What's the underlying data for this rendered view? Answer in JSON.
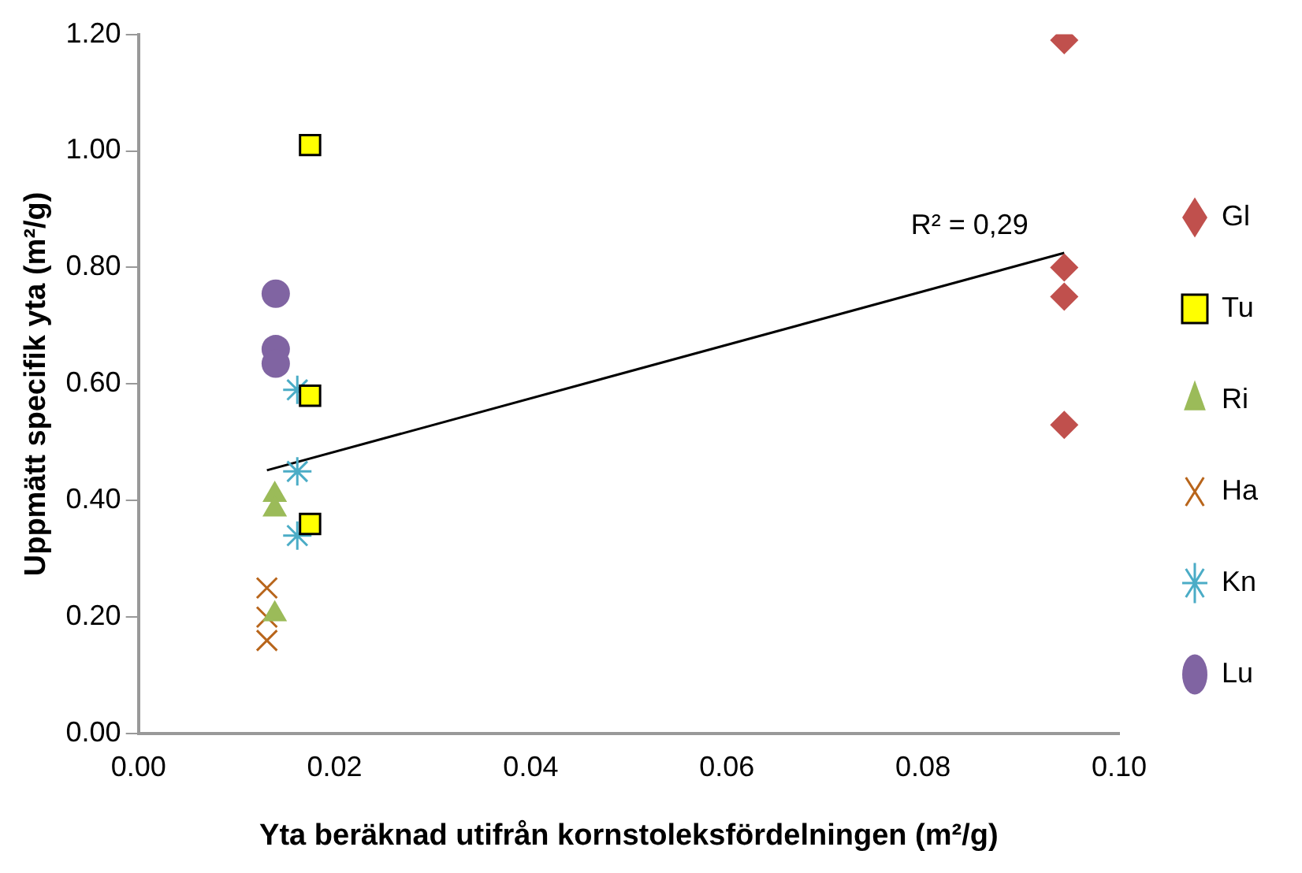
{
  "chart_data": {
    "type": "scatter",
    "xlabel": "Yta beräknad utifrån kornstoleksfördelningen (m²/g)",
    "ylabel": "Uppmätt specifik yta (m²/g)",
    "xlim": [
      0,
      0.1
    ],
    "xticks": [
      {
        "value": 0,
        "label": "0.00"
      },
      {
        "value": 0.02,
        "label": "0.02"
      },
      {
        "value": 0.04,
        "label": "0.04"
      },
      {
        "value": 0.06,
        "label": "0.06"
      },
      {
        "value": 0.08,
        "label": "0.08"
      },
      {
        "value": 0.1,
        "label": "0.10"
      }
    ],
    "ylim": [
      0,
      1.2
    ],
    "yticks": [
      {
        "value": 0,
        "label": "0.00"
      },
      {
        "value": 0.2,
        "label": "0.20"
      },
      {
        "value": 0.4,
        "label": "0.40"
      },
      {
        "value": 0.6,
        "label": "0.60"
      },
      {
        "value": 0.8,
        "label": "0.80"
      },
      {
        "value": 1,
        "label": "1.00"
      },
      {
        "value": 1.2,
        "label": "1.20"
      }
    ],
    "grid": false,
    "legend": "right",
    "series": [
      {
        "name": "Gl",
        "color": "#c0504d",
        "marker": "diamond",
        "x": [
          0.0944,
          0.0944,
          0.0944,
          0.0944
        ],
        "values": [
          1.19,
          0.8,
          0.75,
          0.53
        ]
      },
      {
        "name": "Tu",
        "color": "#ffff00",
        "marker": "square",
        "x": [
          0.0175,
          0.0175,
          0.0175
        ],
        "values": [
          1.01,
          0.58,
          0.36
        ]
      },
      {
        "name": "Ri",
        "color": "#9bbb59",
        "marker": "triangle",
        "x": [
          0.0139,
          0.0139,
          0.0139
        ],
        "values": [
          0.41,
          0.385,
          0.205
        ]
      },
      {
        "name": "Ha",
        "color": "#b8651b",
        "marker": "cross",
        "x": [
          0.0131,
          0.0131,
          0.0131
        ],
        "values": [
          0.25,
          0.2,
          0.16
        ]
      },
      {
        "name": "Kn",
        "color": "#4bacc6",
        "marker": "cross",
        "x": [
          0.0162,
          0.0162,
          0.0162
        ],
        "values": [
          0.59,
          0.45,
          0.34
        ]
      },
      {
        "name": "Lu",
        "color": "#8064a2",
        "marker": "circle",
        "x": [
          0.014,
          0.014,
          0.014
        ],
        "values": [
          0.755,
          0.66,
          0.635
        ]
      },
      {
        "type": "line",
        "color": "#000000",
        "marker": "none",
        "x": [
          0.0131,
          0.0944
        ],
        "values": [
          0.452,
          0.825
        ]
      }
    ],
    "annotations": [
      "R² = 0,29"
    ]
  }
}
